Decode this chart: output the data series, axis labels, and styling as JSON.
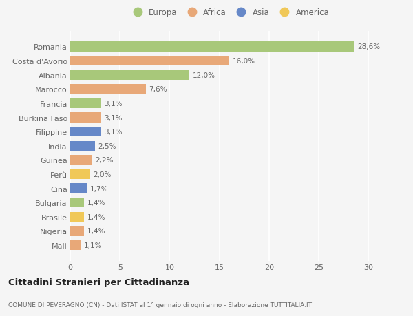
{
  "countries": [
    "Romania",
    "Costa d'Avorio",
    "Albania",
    "Marocco",
    "Francia",
    "Burkina Faso",
    "Filippine",
    "India",
    "Guinea",
    "Perù",
    "Cina",
    "Bulgaria",
    "Brasile",
    "Nigeria",
    "Mali"
  ],
  "values": [
    28.6,
    16.0,
    12.0,
    7.6,
    3.1,
    3.1,
    3.1,
    2.5,
    2.2,
    2.0,
    1.7,
    1.4,
    1.4,
    1.4,
    1.1
  ],
  "continents": [
    "Europa",
    "Africa",
    "Europa",
    "Africa",
    "Europa",
    "Africa",
    "Asia",
    "Asia",
    "Africa",
    "America",
    "Asia",
    "Europa",
    "America",
    "Africa",
    "Africa"
  ],
  "colors": {
    "Europa": "#a8c87a",
    "Africa": "#e8a878",
    "Asia": "#6688c8",
    "America": "#f0c858"
  },
  "legend_order": [
    "Europa",
    "Africa",
    "Asia",
    "America"
  ],
  "title": "Cittadini Stranieri per Cittadinanza",
  "subtitle": "COMUNE DI PEVERAGNO (CN) - Dati ISTAT al 1° gennaio di ogni anno - Elaborazione TUTTITALIA.IT",
  "xlim": [
    0,
    32
  ],
  "xticks": [
    0,
    5,
    10,
    15,
    20,
    25,
    30
  ],
  "background_color": "#f5f5f5",
  "bar_height": 0.7,
  "grid_color": "#ffffff",
  "label_color": "#666666",
  "title_color": "#222222"
}
